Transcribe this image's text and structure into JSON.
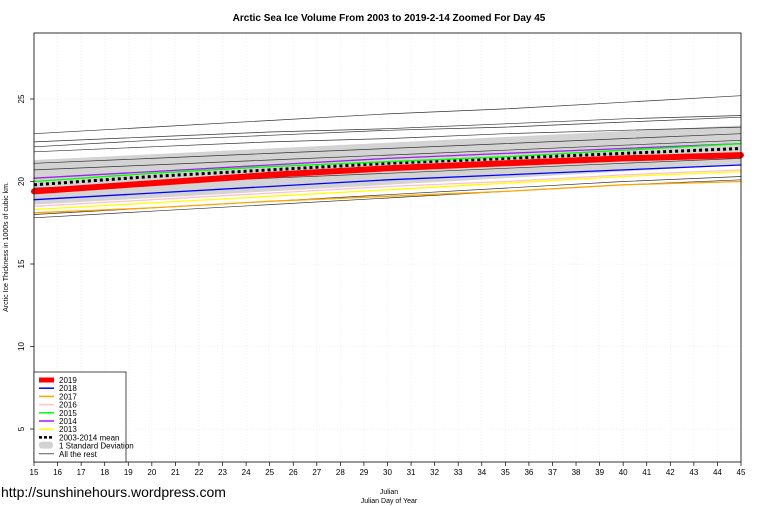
{
  "watermark": "http://sunshinehours.wordpress.com",
  "chart_data": {
    "type": "line",
    "title": "Arctic Sea Ice Volume From 2003 to 2019-2-14 Zoomed For Day 45",
    "xlabel": "Julian",
    "xlabel2": "Julian Day of Year",
    "ylabel": "Arctic Ice Thickness in 1000s of cubic km.",
    "xlim": [
      15,
      45
    ],
    "ylim": [
      3,
      29
    ],
    "x_ticks": [
      15,
      16,
      17,
      18,
      19,
      20,
      21,
      22,
      23,
      24,
      25,
      26,
      27,
      28,
      29,
      30,
      31,
      32,
      33,
      34,
      35,
      36,
      37,
      38,
      39,
      40,
      41,
      42,
      43,
      44,
      45
    ],
    "y_ticks": [
      5,
      10,
      15,
      20,
      25
    ],
    "grid": true,
    "legend_position": "bottom-left",
    "std_band": {
      "name": "1 Standard Deviation",
      "color": "#d3d3d3",
      "x": [
        15,
        45
      ],
      "lower": [
        18.6,
        21.0
      ],
      "upper": [
        21.3,
        23.4
      ]
    },
    "series": [
      {
        "name": "2019",
        "color": "#ff0000",
        "x": [
          15,
          20,
          25,
          30,
          35,
          40,
          45
        ],
        "values": [
          19.4,
          19.9,
          20.4,
          20.8,
          21.1,
          21.4,
          21.6
        ]
      },
      {
        "name": "2018",
        "color": "#0000ff",
        "x": [
          15,
          20,
          25,
          30,
          35,
          40,
          45
        ],
        "values": [
          18.9,
          19.3,
          19.7,
          20.1,
          20.4,
          20.7,
          21.0
        ]
      },
      {
        "name": "2017",
        "color": "#ffa500",
        "x": [
          15,
          20,
          25,
          30,
          35,
          40,
          45
        ],
        "values": [
          18.1,
          18.4,
          18.8,
          19.1,
          19.4,
          19.8,
          20.0
        ]
      },
      {
        "name": "2016",
        "color": "#ffc0cb",
        "x": [
          15,
          20,
          25,
          30,
          35,
          40,
          45
        ],
        "values": [
          18.5,
          18.9,
          19.3,
          19.7,
          20.0,
          20.4,
          20.7
        ]
      },
      {
        "name": "2015",
        "color": "#00ff00",
        "x": [
          15,
          20,
          25,
          30,
          35,
          40,
          45
        ],
        "values": [
          20.0,
          20.5,
          20.9,
          21.2,
          21.5,
          21.9,
          22.3
        ]
      },
      {
        "name": "2014",
        "color": "#a020f0",
        "x": [
          15,
          20,
          25,
          30,
          35,
          40,
          45
        ],
        "values": [
          20.2,
          20.6,
          21.0,
          21.4,
          21.7,
          22.0,
          22.3
        ]
      },
      {
        "name": "2013",
        "color": "#ffff00",
        "x": [
          15,
          20,
          25,
          30,
          35,
          40,
          45
        ],
        "values": [
          18.3,
          18.7,
          19.1,
          19.5,
          19.9,
          20.3,
          20.6
        ]
      },
      {
        "name": "2003-2014 mean",
        "color": "#000000",
        "dashed": true,
        "x": [
          15,
          20,
          25,
          30,
          35,
          40,
          45
        ],
        "values": [
          19.8,
          20.3,
          20.7,
          21.1,
          21.4,
          21.7,
          22.0
        ]
      }
    ],
    "rest_label": "All the rest",
    "rest_series": [
      {
        "x": [
          15,
          20,
          25,
          30,
          35,
          40,
          45
        ],
        "values": [
          22.9,
          23.3,
          23.7,
          24.1,
          24.4,
          24.8,
          25.2
        ]
      },
      {
        "x": [
          15,
          20,
          25,
          30,
          35,
          40,
          45
        ],
        "values": [
          22.4,
          22.7,
          23.0,
          23.2,
          23.5,
          23.8,
          24.0
        ]
      },
      {
        "x": [
          15,
          20,
          25,
          30,
          35,
          40,
          45
        ],
        "values": [
          22.1,
          22.5,
          22.8,
          23.1,
          23.3,
          23.6,
          23.9
        ]
      },
      {
        "x": [
          15,
          20,
          25,
          30,
          35,
          40,
          45
        ],
        "values": [
          21.8,
          22.1,
          22.4,
          22.6,
          22.9,
          23.1,
          23.3
        ]
      },
      {
        "x": [
          15,
          20,
          25,
          30,
          35,
          40,
          45
        ],
        "values": [
          21.1,
          21.4,
          21.7,
          22.0,
          22.3,
          22.6,
          22.9
        ]
      },
      {
        "x": [
          15,
          20,
          25,
          30,
          35,
          40,
          45
        ],
        "values": [
          20.7,
          21.0,
          21.3,
          21.6,
          21.9,
          22.2,
          22.5
        ]
      },
      {
        "x": [
          15,
          20,
          25,
          30,
          35,
          40,
          45
        ],
        "values": [
          19.6,
          19.9,
          20.2,
          20.5,
          20.8,
          21.1,
          21.4
        ]
      },
      {
        "x": [
          15,
          20,
          25,
          30,
          35,
          40,
          45
        ],
        "values": [
          18.0,
          18.4,
          18.8,
          19.2,
          19.6,
          20.0,
          20.3
        ]
      },
      {
        "x": [
          15,
          20,
          25,
          30,
          35,
          40,
          45
        ],
        "values": [
          17.8,
          18.2,
          18.6,
          19.0,
          19.4,
          19.8,
          20.1
        ]
      }
    ]
  }
}
